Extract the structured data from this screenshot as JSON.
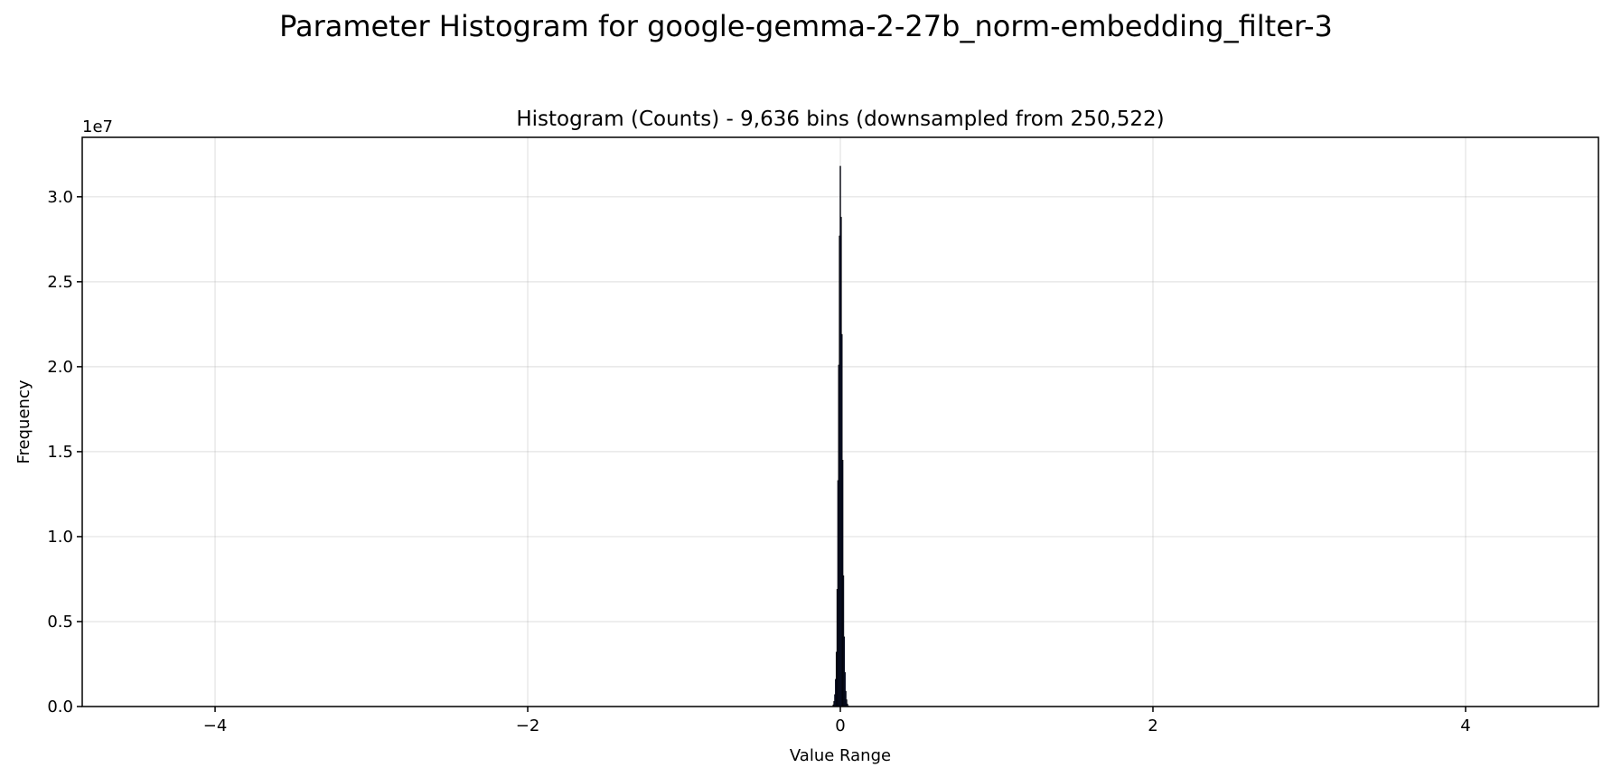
{
  "figure": {
    "suptitle": "Parameter Histogram for google-gemma-2-27b_norm-embedding_filter-3"
  },
  "chart_data": {
    "type": "bar",
    "title": "Histogram (Counts) - 9,636 bins (downsampled from 250,522)",
    "xlabel": "Value Range",
    "ylabel": "Frequency",
    "offset_text": "1e7",
    "xlim": [
      -4.85,
      4.85
    ],
    "ylim": [
      0,
      33500000.0
    ],
    "grid": true,
    "x_ticks": [
      {
        "value": -4,
        "label": "−4"
      },
      {
        "value": -2,
        "label": "−2"
      },
      {
        "value": 0,
        "label": "0"
      },
      {
        "value": 2,
        "label": "2"
      },
      {
        "value": 4,
        "label": "4"
      }
    ],
    "y_ticks": [
      {
        "value": 0,
        "label": "0.0"
      },
      {
        "value": 5000000,
        "label": "0.5"
      },
      {
        "value": 10000000,
        "label": "1.0"
      },
      {
        "value": 15000000,
        "label": "1.5"
      },
      {
        "value": 20000000,
        "label": "2.0"
      },
      {
        "value": 25000000,
        "label": "2.5"
      },
      {
        "value": 30000000,
        "label": "3.0"
      }
    ],
    "bar_color": "#1a2a6c",
    "edge_color": "#000000",
    "bins": [
      {
        "x": -0.045,
        "y": 100000
      },
      {
        "x": -0.04,
        "y": 300000
      },
      {
        "x": -0.035,
        "y": 700000
      },
      {
        "x": -0.03,
        "y": 1600000
      },
      {
        "x": -0.025,
        "y": 3200000
      },
      {
        "x": -0.02,
        "y": 6900000
      },
      {
        "x": -0.015,
        "y": 13300000
      },
      {
        "x": -0.01,
        "y": 20100000
      },
      {
        "x": -0.005,
        "y": 27700000
      },
      {
        "x": 0.0,
        "y": 31800000
      },
      {
        "x": 0.005,
        "y": 28800000
      },
      {
        "x": 0.01,
        "y": 21900000
      },
      {
        "x": 0.015,
        "y": 14500000
      },
      {
        "x": 0.02,
        "y": 7700000
      },
      {
        "x": 0.025,
        "y": 4100000
      },
      {
        "x": 0.03,
        "y": 2000000
      },
      {
        "x": 0.035,
        "y": 900000
      },
      {
        "x": 0.04,
        "y": 400000
      },
      {
        "x": 0.045,
        "y": 150000
      },
      {
        "x": 0.05,
        "y": 50000
      }
    ]
  }
}
